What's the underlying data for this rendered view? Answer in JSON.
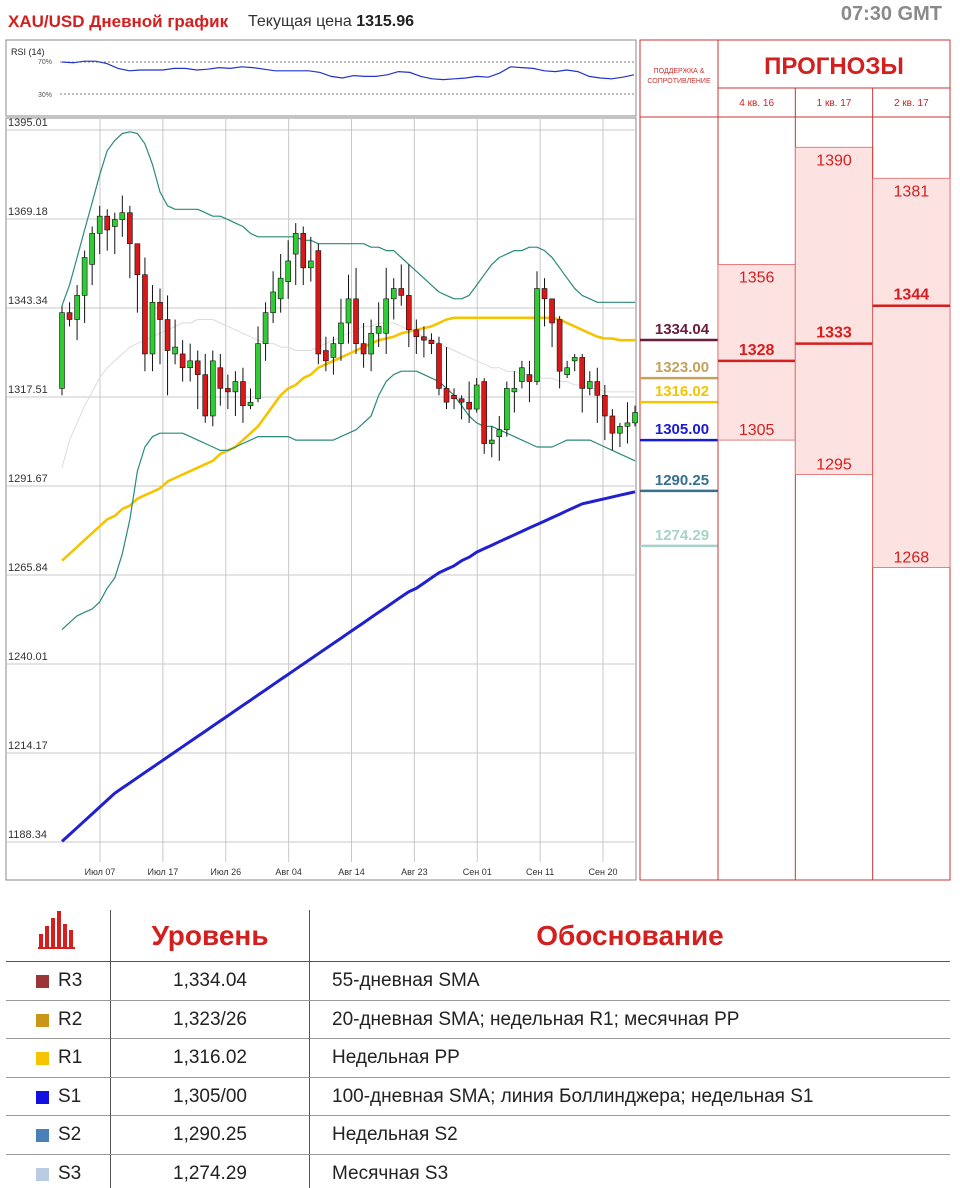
{
  "header": {
    "title": "XAU/USD Дневной график",
    "price_label": "Текущая цена",
    "price_value": "1315.96",
    "time": "07:30 GMT"
  },
  "rsi": {
    "label": "RSI (14)",
    "levels": [
      "70%",
      "30%"
    ],
    "values": [
      70,
      69,
      71,
      71,
      68,
      62,
      59,
      60,
      60,
      60,
      62,
      62,
      60,
      61,
      63,
      62,
      64,
      63,
      61,
      59,
      59,
      59,
      59,
      57,
      52,
      50,
      53,
      52,
      52,
      54,
      58,
      57,
      52,
      49,
      48,
      49,
      50,
      52,
      51,
      56,
      64,
      63,
      62,
      59,
      58,
      60,
      58,
      52,
      50,
      49,
      51,
      54
    ]
  },
  "chart_data": {
    "type": "candlestick",
    "y_ticks": [
      "1395.01",
      "1369.18",
      "1343.34",
      "1317.51",
      "1291.67",
      "1265.84",
      "1240.01",
      "1214.17",
      "1188.34"
    ],
    "ylim": [
      1188.34,
      1395.01
    ],
    "x_ticks": [
      "Июл 07",
      "Июл 17",
      "Июл 26",
      "Авг 04",
      "Авг 14",
      "Авг 23",
      "Сен 01",
      "Сен 11",
      "Сен 20"
    ],
    "candles": [
      [
        1320,
        1342,
        1318,
        1344
      ],
      [
        1342,
        1340,
        1338,
        1345
      ],
      [
        1340,
        1347,
        1334,
        1350
      ],
      [
        1347,
        1358,
        1339,
        1360
      ],
      [
        1356,
        1365,
        1350,
        1367
      ],
      [
        1365,
        1370,
        1359,
        1373
      ],
      [
        1370,
        1366,
        1360,
        1372
      ],
      [
        1367,
        1369,
        1359,
        1371
      ],
      [
        1369,
        1371,
        1364,
        1376
      ],
      [
        1371,
        1362,
        1352,
        1373
      ],
      [
        1362,
        1353,
        1342,
        1360
      ],
      [
        1353,
        1330,
        1325,
        1358
      ],
      [
        1330,
        1345,
        1325,
        1350
      ],
      [
        1345,
        1340,
        1327,
        1349
      ],
      [
        1340,
        1331,
        1318,
        1347
      ],
      [
        1330,
        1332,
        1327,
        1340
      ],
      [
        1330,
        1326,
        1322,
        1334
      ],
      [
        1326,
        1328,
        1322,
        1333
      ],
      [
        1328,
        1324,
        1314,
        1331
      ],
      [
        1324,
        1312,
        1310,
        1330
      ],
      [
        1312,
        1328,
        1309,
        1331
      ],
      [
        1326,
        1320,
        1315,
        1330
      ],
      [
        1320,
        1319,
        1314,
        1324
      ],
      [
        1319,
        1322,
        1312,
        1325
      ],
      [
        1322,
        1315,
        1310,
        1326
      ],
      [
        1315,
        1316,
        1314,
        1320
      ],
      [
        1317,
        1333,
        1316,
        1338
      ],
      [
        1333,
        1342,
        1328,
        1345
      ],
      [
        1342,
        1348,
        1339,
        1354
      ],
      [
        1346,
        1352,
        1342,
        1359
      ],
      [
        1351,
        1357,
        1346,
        1363
      ],
      [
        1359,
        1365,
        1350,
        1368
      ],
      [
        1365,
        1355,
        1350,
        1367
      ],
      [
        1355,
        1357,
        1351,
        1364
      ],
      [
        1360,
        1330,
        1327,
        1362
      ],
      [
        1331,
        1328,
        1325,
        1335
      ],
      [
        1329,
        1333,
        1324,
        1335
      ],
      [
        1333,
        1339,
        1328,
        1346
      ],
      [
        1339,
        1346,
        1333,
        1353
      ],
      [
        1346,
        1333,
        1330,
        1355
      ],
      [
        1333,
        1330,
        1326,
        1339
      ],
      [
        1330,
        1336,
        1325,
        1340
      ],
      [
        1336,
        1338,
        1332,
        1345
      ],
      [
        1336,
        1346,
        1330,
        1355
      ],
      [
        1346,
        1349,
        1340,
        1352
      ],
      [
        1349,
        1347,
        1344,
        1356
      ],
      [
        1347,
        1337,
        1332,
        1356
      ],
      [
        1337,
        1335,
        1330,
        1340
      ],
      [
        1335,
        1334,
        1329,
        1338
      ],
      [
        1334,
        1333,
        1330,
        1336
      ],
      [
        1333,
        1320,
        1318,
        1335
      ],
      [
        1320,
        1316,
        1314,
        1332
      ],
      [
        1318,
        1317,
        1314,
        1320
      ],
      [
        1317,
        1316,
        1311,
        1318
      ],
      [
        1316,
        1314,
        1310,
        1322
      ],
      [
        1314,
        1321,
        1313,
        1323
      ],
      [
        1322,
        1304,
        1301,
        1323
      ],
      [
        1304,
        1305,
        1300,
        1309
      ],
      [
        1306,
        1308,
        1299,
        1312
      ],
      [
        1308,
        1320,
        1306,
        1322
      ],
      [
        1319,
        1320,
        1313,
        1325
      ],
      [
        1322,
        1326,
        1320,
        1328
      ],
      [
        1324,
        1322,
        1316,
        1328
      ],
      [
        1322,
        1349,
        1321,
        1354
      ],
      [
        1349,
        1346,
        1338,
        1352
      ],
      [
        1346,
        1339,
        1332,
        1346
      ],
      [
        1340,
        1325,
        1320,
        1341
      ],
      [
        1324,
        1326,
        1323,
        1328
      ],
      [
        1328,
        1329,
        1325,
        1330
      ],
      [
        1329,
        1320,
        1313,
        1330
      ],
      [
        1320,
        1322,
        1318,
        1325
      ],
      [
        1322,
        1318,
        1310,
        1326
      ],
      [
        1318,
        1312,
        1305,
        1321
      ],
      [
        1312,
        1307,
        1302,
        1314
      ],
      [
        1307,
        1309,
        1303,
        1310
      ],
      [
        1309,
        1310,
        1304,
        1316
      ],
      [
        1310,
        1313,
        1309,
        1315
      ]
    ],
    "series": [
      {
        "kind": "sma20",
        "values": [
          1298,
          1305,
          1310,
          1314,
          1317,
          1321,
          1323,
          1325,
          1328,
          1331,
          1334,
          1336,
          1337,
          1339,
          1340,
          1340,
          1340,
          1340,
          1339,
          1338,
          1338,
          1337,
          1336,
          1336,
          1335,
          1334,
          1334,
          1334,
          1334,
          1333,
          1333,
          1333,
          1333,
          1333,
          1333,
          1334,
          1335,
          1336,
          1337,
          1338,
          1339,
          1340,
          1340,
          1341,
          1341,
          1341,
          1341,
          1340,
          1339,
          1338,
          1337,
          1335,
          1334,
          1333,
          1332,
          1331,
          1331,
          1330,
          1329,
          1328,
          1327,
          1326,
          1326,
          1326,
          1326,
          1325,
          1324,
          1323,
          1323,
          1322,
          1322,
          1321,
          1321,
          1320,
          1320,
          1320,
          1320
        ]
      },
      {
        "kind": "sma55",
        "values": [
          1270,
          1272,
          1274,
          1276,
          1278,
          1280,
          1282,
          1283,
          1285,
          1286,
          1288,
          1289,
          1290,
          1291,
          1293,
          1294,
          1295,
          1296,
          1297,
          1298,
          1299,
          1301,
          1302,
          1303,
          1305,
          1307,
          1309,
          1312,
          1315,
          1318,
          1320,
          1321,
          1323,
          1324,
          1326,
          1327,
          1328,
          1329,
          1330,
          1331,
          1332,
          1333,
          1334,
          1334.5,
          1335,
          1336,
          1336.5,
          1337,
          1337.5,
          1338,
          1339,
          1340,
          1340.5,
          1340.5,
          1340.5,
          1340.5,
          1340.5,
          1340.5,
          1340.5,
          1340.5,
          1340.5,
          1340.5,
          1340.5,
          1340.5,
          1340.5,
          1340.5,
          1340,
          1339,
          1338,
          1337,
          1336,
          1335,
          1334.5,
          1334.5,
          1334,
          1334,
          1334
        ]
      },
      {
        "kind": "sma100",
        "values": [
          1188.5,
          1190.5,
          1192.5,
          1194.5,
          1196.5,
          1198.5,
          1200.5,
          1202.5,
          1204,
          1205.5,
          1207,
          1208.5,
          1210,
          1211.5,
          1213,
          1214.5,
          1216,
          1217.5,
          1219,
          1220.5,
          1222,
          1223.5,
          1225,
          1226.5,
          1228,
          1229.5,
          1231,
          1232.5,
          1234,
          1235.5,
          1237,
          1238.5,
          1240,
          1241.5,
          1243,
          1244.5,
          1246,
          1247.5,
          1249,
          1250.5,
          1252,
          1253.5,
          1255,
          1256.5,
          1258,
          1259.5,
          1261,
          1262,
          1263.5,
          1265,
          1266.5,
          1267.5,
          1268.5,
          1270,
          1271,
          1272.5,
          1273.5,
          1274.5,
          1275.5,
          1276.5,
          1277.5,
          1278.5,
          1279.5,
          1280.5,
          1281.5,
          1282.5,
          1283.5,
          1284.5,
          1285.5,
          1286.5,
          1287,
          1287.5,
          1288,
          1288.5,
          1289,
          1289.5,
          1290
        ]
      },
      {
        "kind": "bollinger_upper",
        "values": [
          1344,
          1350,
          1358,
          1366,
          1374,
          1382,
          1389,
          1392,
          1394,
          1394.5,
          1394,
          1391,
          1385,
          1377,
          1373,
          1372,
          1372,
          1372,
          1372,
          1371,
          1370,
          1370,
          1369,
          1368,
          1367,
          1365,
          1364,
          1364,
          1364,
          1364,
          1364,
          1364,
          1363,
          1363,
          1362,
          1362,
          1362,
          1362,
          1362,
          1362,
          1362,
          1361,
          1361,
          1360,
          1360,
          1358,
          1356,
          1354,
          1352,
          1350,
          1348,
          1347,
          1346,
          1346,
          1347,
          1350,
          1353,
          1356,
          1358,
          1359,
          1360,
          1360,
          1361,
          1361,
          1360,
          1358,
          1355,
          1352,
          1349,
          1347,
          1346,
          1345,
          1345,
          1345,
          1345,
          1345,
          1345
        ]
      },
      {
        "kind": "bollinger_lower",
        "values": [
          1250,
          1252,
          1254,
          1255,
          1256,
          1258,
          1262,
          1265,
          1272,
          1282,
          1296,
          1303,
          1306,
          1307,
          1307,
          1307,
          1307,
          1306,
          1305,
          1304,
          1303,
          1302,
          1302,
          1303,
          1304,
          1305,
          1306,
          1306,
          1306,
          1306,
          1306,
          1305,
          1305,
          1305,
          1305,
          1305,
          1305,
          1306,
          1307,
          1308,
          1310,
          1312,
          1318,
          1322,
          1324,
          1325,
          1325,
          1325,
          1324,
          1323,
          1322,
          1320,
          1318,
          1315,
          1312,
          1310,
          1309,
          1309,
          1308,
          1307,
          1306,
          1305,
          1304,
          1303,
          1303,
          1303,
          1304,
          1305,
          1305,
          1305,
          1305,
          1304,
          1303,
          1302,
          1301,
          1300,
          1299
        ]
      },
      {
        "kind": "sma_light",
        "values": [
          1297,
          1305,
          1310,
          1315,
          1319,
          1323,
          1326,
          1328,
          1330,
          1332,
          1333,
          1334,
          1335,
          1336,
          1337,
          1338,
          1339,
          1339,
          1340,
          1340,
          1340,
          1339,
          1338,
          1337,
          1336,
          1335,
          1334,
          1333,
          1333,
          1332,
          1332,
          1331,
          1331,
          1331,
          1332,
          1333,
          1334,
          1335,
          1336,
          1337,
          1338,
          1338,
          1339,
          1339,
          1339,
          1338,
          1337,
          1336,
          1335,
          1334,
          1333,
          1332,
          1331,
          1330,
          1329,
          1328,
          1327,
          1326,
          1326,
          1325,
          1325,
          1324,
          1324,
          1323,
          1323,
          1323,
          1322,
          1322,
          1321,
          1321,
          1320,
          1320,
          1319,
          1319,
          1319,
          1319,
          1319
        ]
      }
    ],
    "support_resistance": [
      {
        "value": "1334.04",
        "color": "#6b1a3c"
      },
      {
        "value": "1323.00",
        "color": "#c4a25b"
      },
      {
        "value": "1316.02",
        "color": "#f5c400"
      },
      {
        "value": "1305.00",
        "color": "#1a1ad4"
      },
      {
        "value": "1290.25",
        "color": "#35708c"
      },
      {
        "value": "1274.29",
        "color": "#a8d3c8"
      }
    ]
  },
  "support_column": {
    "title_line1": "ПОДДЕРЖКА &",
    "title_line2": "СОПРОТИВЛЕНИЕ"
  },
  "forecast": {
    "title": "ПРОГНОЗЫ",
    "columns": [
      {
        "label": "4 кв. 16",
        "high": "1356",
        "mid": "1328",
        "low": "1305"
      },
      {
        "label": "1 кв. 17",
        "high": "1390",
        "mid": "1333",
        "low": "1295"
      },
      {
        "label": "2 кв. 17",
        "high": "1381",
        "mid": "1344",
        "low": "1268"
      }
    ]
  },
  "colors": {
    "bull": "#2fcc35",
    "bear": "#d91818",
    "grid": "#c8c8c8",
    "forecast_fill": "#fde2e2",
    "accent": "#d41f1f"
  },
  "table": {
    "header_level": "Уровень",
    "header_reason": "Обоснование",
    "rows": [
      {
        "name": "R3",
        "level": "1,334.04",
        "reason": "55-дневная SMA",
        "color": "#9c3535"
      },
      {
        "name": "R2",
        "level": "1,323/26",
        "reason": "20-дневная SMA; недельная R1; месячная PP",
        "color": "#c9961a"
      },
      {
        "name": "R1",
        "level": "1,316.02",
        "reason": "Недельная PP",
        "color": "#f5c400"
      },
      {
        "name": "S1",
        "level": "1,305/00",
        "reason": "100-дневная SMA; линия Боллинджера; недельная S1",
        "color": "#1010e0"
      },
      {
        "name": "S2",
        "level": "1,290.25",
        "reason": "Недельная S2",
        "color": "#4a7fb8"
      },
      {
        "name": "S3",
        "level": "1,274.29",
        "reason": "Месячная S3",
        "color": "#b8cde2"
      }
    ]
  }
}
